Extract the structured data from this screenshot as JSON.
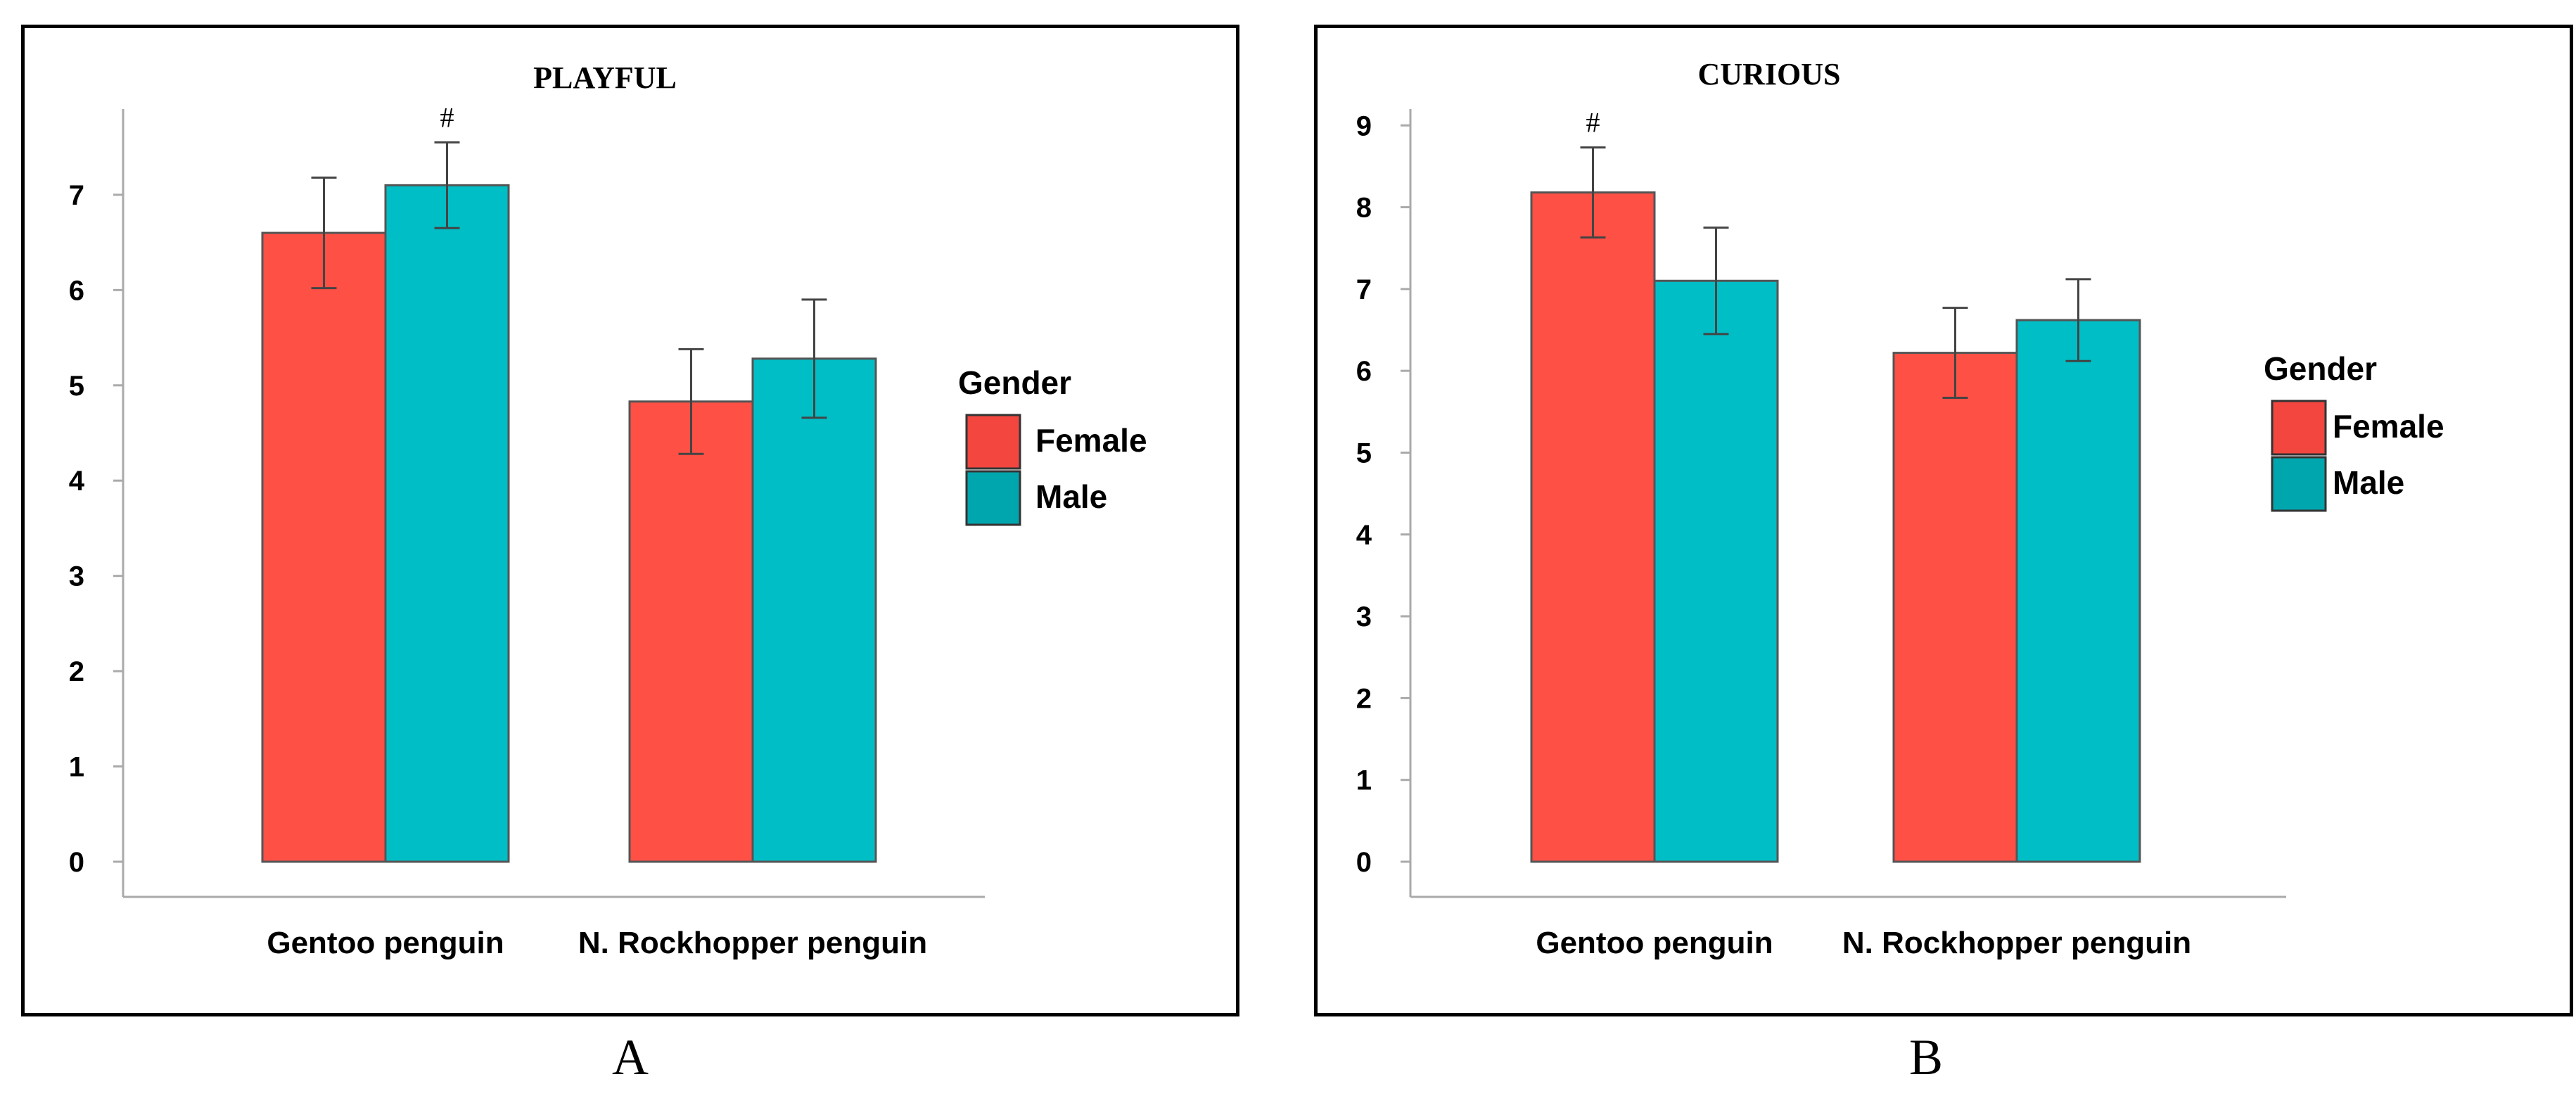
{
  "chart_data": [
    {
      "type": "bar",
      "title": "PLAYFUL",
      "panel_label": "A",
      "categories": [
        "Gentoo penguin",
        "N. Rockhopper penguin"
      ],
      "series": [
        {
          "name": "Female",
          "values": [
            6.6,
            4.83
          ],
          "error": [
            0.58,
            0.55
          ]
        },
        {
          "name": "Male",
          "values": [
            7.1,
            5.28
          ],
          "error": [
            0.45,
            0.62
          ]
        }
      ],
      "ylim": [
        0,
        7.9
      ],
      "yticks": [
        0,
        1,
        2,
        3,
        4,
        5,
        6,
        7
      ],
      "xlabel": "",
      "ylabel": "",
      "legend_title": "Gender",
      "legend_position": "right",
      "annotations": [
        {
          "text": "#",
          "category": 0,
          "series": 1
        }
      ]
    },
    {
      "type": "bar",
      "title": "CURIOUS",
      "panel_label": "B",
      "categories": [
        "Gentoo penguin",
        "N. Rockhopper penguin"
      ],
      "series": [
        {
          "name": "Female",
          "values": [
            8.18,
            6.22
          ],
          "error": [
            0.55,
            0.55
          ]
        },
        {
          "name": "Male",
          "values": [
            7.1,
            6.62
          ],
          "error": [
            0.65,
            0.5
          ]
        }
      ],
      "ylim": [
        0,
        9.2
      ],
      "yticks": [
        0,
        1,
        2,
        3,
        4,
        5,
        6,
        7,
        8,
        9
      ],
      "xlabel": "",
      "ylabel": "",
      "legend_title": "Gender",
      "legend_position": "right",
      "annotations": [
        {
          "text": "#",
          "category": 0,
          "series": 0
        }
      ]
    }
  ],
  "colors": {
    "female": "#ff5046",
    "male": "#00bec6",
    "female_legend": "#f2463f",
    "male_legend": "#00a6ad",
    "axis": "#aaaaaa",
    "error": "#444444"
  }
}
